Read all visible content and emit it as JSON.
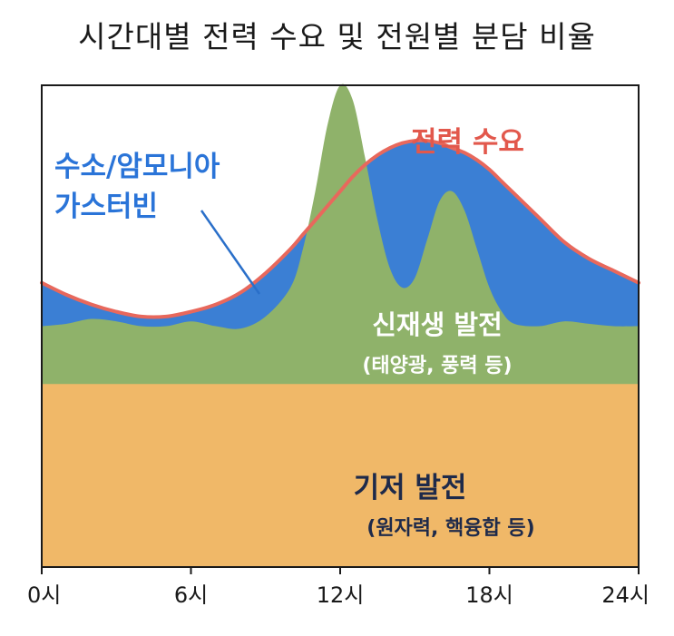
{
  "chart_data": {
    "type": "area",
    "title": "시간대별 전력 수요 및 전원별 분담 비율",
    "x_ticks": [
      "0시",
      "6시",
      "12시",
      "18시",
      "24시"
    ],
    "xlim": [
      0,
      24
    ],
    "ylim": [
      0,
      100
    ],
    "hours": [
      0,
      1,
      2,
      3,
      4,
      5,
      6,
      7,
      8,
      9,
      10,
      10.5,
      11,
      11.5,
      12,
      12.5,
      13,
      13.5,
      14,
      14.5,
      15,
      15.5,
      16,
      16.5,
      17,
      17.5,
      18,
      18.5,
      19,
      20,
      21,
      22,
      23,
      24
    ],
    "series": [
      {
        "name": "기저 발전",
        "sublabel": "(원자력, 핵융합 등)",
        "color": "#f0b868",
        "values": [
          38,
          38,
          38,
          38,
          38,
          38,
          38,
          38,
          38,
          38,
          38,
          38,
          38,
          38,
          38,
          38,
          38,
          38,
          38,
          38,
          38,
          38,
          38,
          38,
          38,
          38,
          38,
          38,
          38,
          38,
          38,
          38,
          38,
          38
        ]
      },
      {
        "name": "신재생 발전",
        "sublabel": "(태양광, 풍력 등)",
        "color": "#8fb26a",
        "values": [
          50,
          50.5,
          51.5,
          51,
          50,
          50,
          51,
          50,
          49.5,
          52,
          58,
          66,
          78,
          92,
          100,
          97,
          85,
          72,
          62,
          58,
          60,
          68,
          76,
          78,
          74,
          66,
          58,
          53,
          50.5,
          50,
          51,
          50.5,
          50,
          50
        ]
      },
      {
        "name": "수소/암모니아 가스터빈",
        "color": "#3b7fd4",
        "values": [
          59,
          56.5,
          54.5,
          53,
          52,
          52,
          53,
          54.5,
          57,
          61,
          66,
          69,
          72,
          75,
          78,
          81,
          83.5,
          85.5,
          87,
          88,
          88.5,
          88.5,
          88,
          87,
          86,
          84.5,
          82.5,
          80,
          77.5,
          72.5,
          67.5,
          64,
          61.5,
          59
        ]
      },
      {
        "name": "전력 수요",
        "color": "#e8685c",
        "values": [
          59,
          56.5,
          54.5,
          53,
          52,
          52,
          53,
          54.5,
          57,
          61,
          66,
          69,
          72,
          75,
          78,
          81,
          83.5,
          85.5,
          87,
          88,
          88.5,
          88.5,
          88,
          87,
          86,
          84.5,
          82.5,
          80,
          77.5,
          72.5,
          67.5,
          64,
          61.5,
          59
        ]
      }
    ]
  }
}
